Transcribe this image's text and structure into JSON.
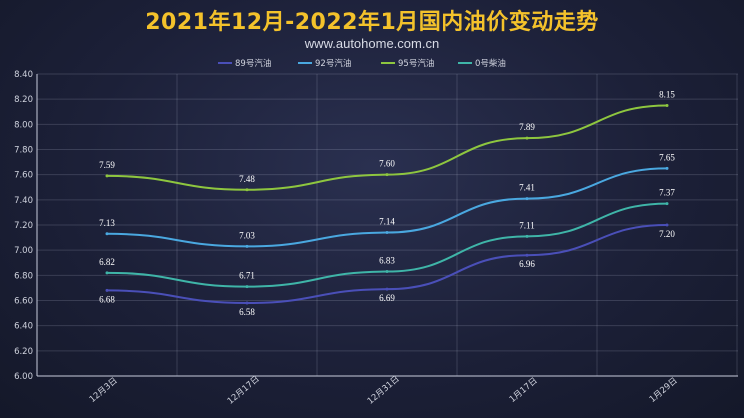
{
  "header": {
    "title": "2021年12月-2022年1月国内油价变动走势",
    "subtitle": "www.autohome.com.cn"
  },
  "chart_data": {
    "type": "line",
    "title": "2021年12月-2022年1月国内油价变动走势",
    "subtitle": "www.autohome.com.cn",
    "categories": [
      "12月3日",
      "12月17日",
      "12月31日",
      "1月17日",
      "1月29日"
    ],
    "ylim": [
      6.0,
      8.4
    ],
    "ytick_step": 0.2,
    "grid": true,
    "legend_position": "top-center",
    "series": [
      {
        "name": "89号汽油",
        "color": "#4a4fb8",
        "values": [
          6.68,
          6.58,
          6.69,
          6.96,
          7.2
        ],
        "label_side": "below"
      },
      {
        "name": "92号汽油",
        "color": "#4aa8e0",
        "values": [
          7.13,
          7.03,
          7.14,
          7.41,
          7.65
        ],
        "label_side": "above"
      },
      {
        "name": "95号汽油",
        "color": "#8ec63f",
        "values": [
          7.59,
          7.48,
          7.6,
          7.89,
          8.15
        ],
        "label_side": "above"
      },
      {
        "name": "0号柴油",
        "color": "#3fb5a8",
        "values": [
          6.82,
          6.71,
          6.83,
          7.11,
          7.37
        ],
        "label_side": "above"
      }
    ]
  }
}
